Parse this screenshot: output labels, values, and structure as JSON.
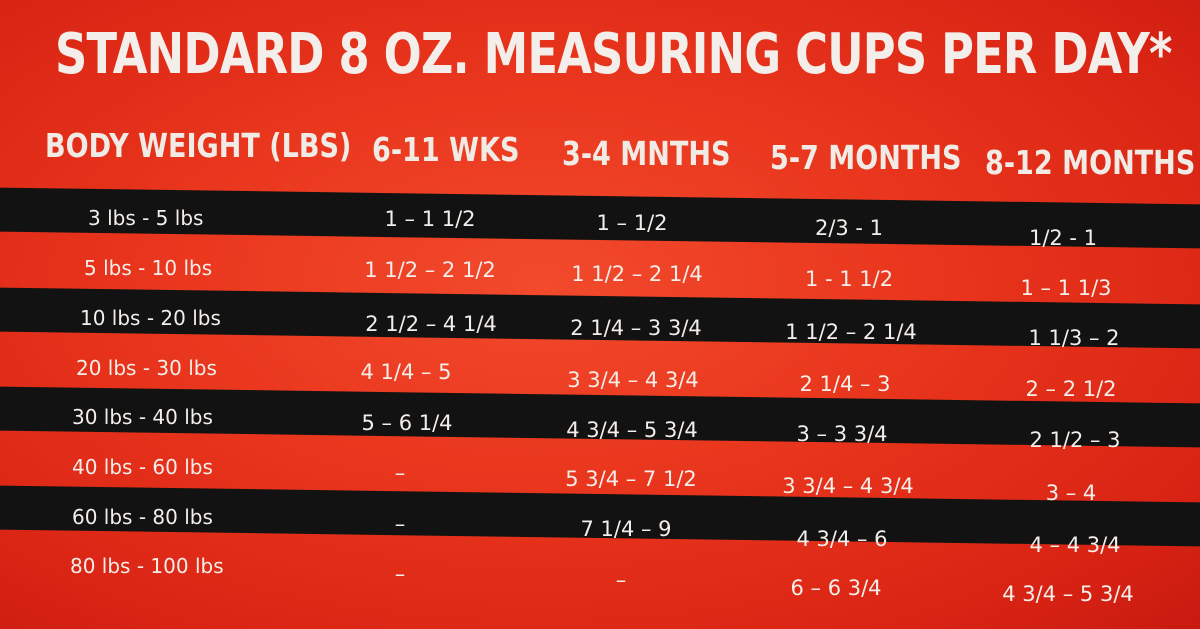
{
  "title": "STANDARD 8 OZ. MEASURING CUPS PER DAY*",
  "headers": [
    "BODY WEIGHT  (LBS)",
    "6-11 WKS",
    "3-4 MNTHS",
    "5-7 MONTHS",
    "8-12 MONTHS"
  ],
  "rows": [
    [
      "3 lbs - 5 lbs",
      "1 – 1 1/2",
      "1 – 1/2",
      "2/3 - 1",
      "1/2 - 1"
    ],
    [
      "5 lbs - 10 lbs",
      "1 1/2 – 2 1/2",
      "1 1/2 – 2 1/4",
      "1 - 1 1/2",
      "1 – 1 1/3"
    ],
    [
      "10 lbs - 20 lbs",
      "2 1/2 – 4 1/4",
      "2 1/4 – 3 3/4",
      "1 1/2 – 2 1/4",
      "1 1/3 – 2"
    ],
    [
      "20 lbs - 30 lbs",
      "4 1/4 – 5",
      "3 3/4 – 4 3/4",
      "2 1/4 – 3",
      "2 – 2 1/2"
    ],
    [
      "30 lbs - 40 lbs",
      "5 – 6 1/4",
      "4 3/4 – 5 3/4",
      "3 – 3 3/4",
      "2 1/2 – 3"
    ],
    [
      "40 lbs - 60 lbs",
      "–",
      "5 3/4 – 7 1/2",
      "3 3/4 – 4 3/4",
      "3 – 4"
    ],
    [
      "60 lbs - 80 lbs",
      "–",
      "7 1/4 – 9",
      "4 3/4 – 6",
      "4 – 4 3/4"
    ],
    [
      "80 lbs - 100 lbs",
      "–",
      "–",
      "6 – 6 3/4",
      "4 3/4 – 5 3/4"
    ]
  ],
  "colors": {
    "background": "#e8341c",
    "band": "#121212",
    "text": "#f3eee9"
  }
}
